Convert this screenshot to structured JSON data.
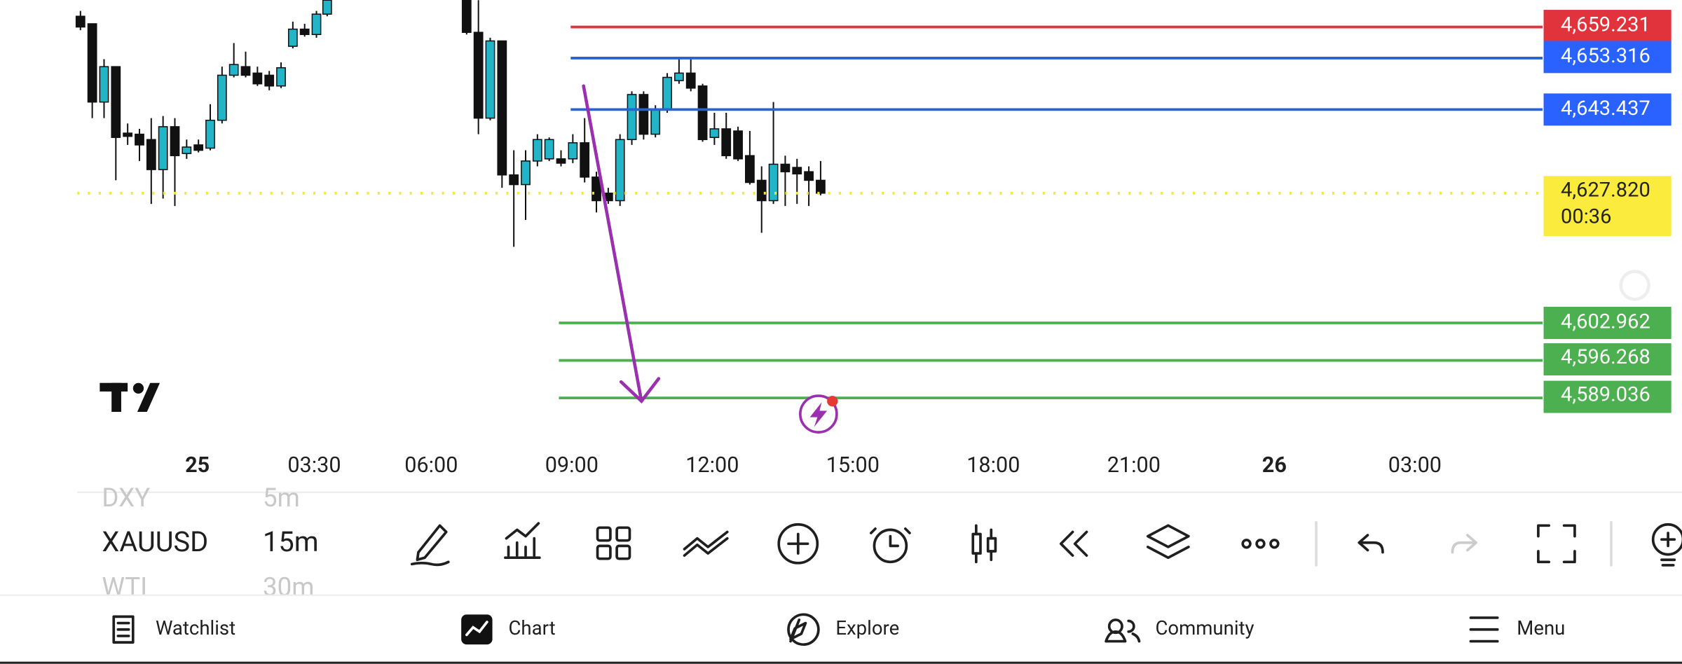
{
  "price_lines": [
    {
      "price": "4,659.231"
    },
    {
      "price": "4,653.316"
    },
    {
      "price": "4,643.437"
    }
  ],
  "last_price": {
    "price": "4,627.820",
    "countdown": "00:36"
  },
  "target_lines": [
    {
      "price": "4,602.962"
    },
    {
      "price": "4,596.268"
    },
    {
      "price": "4,589.036"
    }
  ],
  "time_axis": [
    "25",
    "03:30",
    "06:00",
    "09:00",
    "12:00",
    "15:00",
    "18:00",
    "21:00",
    "26",
    "03:00"
  ],
  "symbol_list": {
    "previous_symbol": "DXY",
    "previous_interval": "5m",
    "symbol": "XAUUSD",
    "interval": "15m",
    "next_symbol": "WTI",
    "next_interval": "30m"
  },
  "nav": [
    "Watchlist",
    "Chart",
    "Explore",
    "Community",
    "Menu"
  ]
}
